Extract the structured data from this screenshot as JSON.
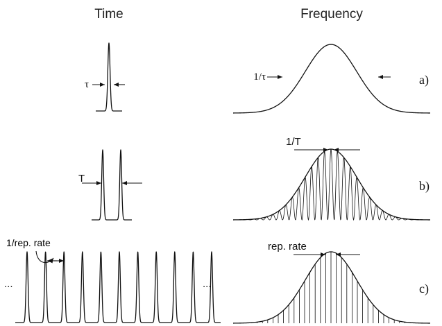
{
  "headers": {
    "time": "Time",
    "frequency": "Frequency"
  },
  "panels": [
    {
      "id": "a",
      "label": "a)",
      "time_label": "τ",
      "freq_label": "1/τ"
    },
    {
      "id": "b",
      "label": "b)",
      "time_label": "T",
      "freq_label": "1/T"
    },
    {
      "id": "c",
      "label": "c)",
      "time_label": "1/rep. rate",
      "freq_label": "rep. rate"
    }
  ],
  "ellipsis": "..."
}
